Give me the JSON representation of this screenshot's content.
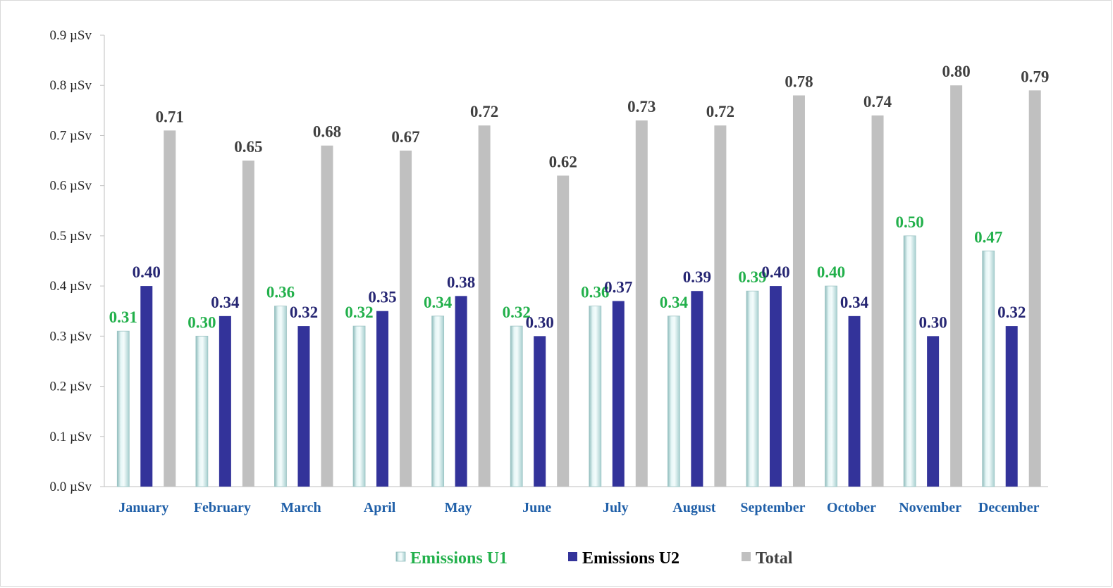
{
  "chart_data": {
    "type": "bar",
    "categories": [
      "January",
      "February",
      "March",
      "April",
      "May",
      "June",
      "July",
      "August",
      "September",
      "October",
      "November",
      "December"
    ],
    "series": [
      {
        "name": "Emissions U1",
        "values": [
          0.31,
          0.3,
          0.36,
          0.32,
          0.34,
          0.32,
          0.36,
          0.34,
          0.39,
          0.4,
          0.5,
          0.47
        ],
        "labels": [
          "0.31",
          "0.30",
          "0.36",
          "0.32",
          "0.34",
          "0.32",
          "0.36",
          "0.34",
          "0.39",
          "0.40",
          "0.50",
          "0.47"
        ],
        "color": "#c9e6e6",
        "label_color": "#22b04b"
      },
      {
        "name": "Emissions U2",
        "values": [
          0.4,
          0.34,
          0.32,
          0.35,
          0.38,
          0.3,
          0.37,
          0.39,
          0.4,
          0.34,
          0.3,
          0.32
        ],
        "labels": [
          "0.40",
          "0.34",
          "0.32",
          "0.35",
          "0.38",
          "0.30",
          "0.37",
          "0.39",
          "0.40",
          "0.34",
          "0.30",
          "0.32"
        ],
        "color": "#33339a",
        "label_color": "#262673"
      },
      {
        "name": "Total",
        "values": [
          0.71,
          0.65,
          0.68,
          0.67,
          0.72,
          0.62,
          0.73,
          0.72,
          0.78,
          0.74,
          0.8,
          0.79
        ],
        "labels": [
          "0.71",
          "0.65",
          "0.68",
          "0.67",
          "0.72",
          "0.62",
          "0.73",
          "0.72",
          "0.78",
          "0.74",
          "0.80",
          "0.79"
        ],
        "color": "#c0c0c0",
        "label_color": "#404040"
      }
    ],
    "ylim": [
      0,
      0.9
    ],
    "yticks": [
      "0.0 µSv",
      "0.1 µSv",
      "0.2 µSv",
      "0.3 µSv",
      "0.4 µSv",
      "0.5 µSv",
      "0.6 µSv",
      "0.7 µSv",
      "0.8 µSv",
      "0.9 µSv"
    ],
    "grid": false,
    "legend_position": "bottom-center",
    "legend_label_colors": [
      "#22b04b",
      "#000000",
      "#404040"
    ]
  }
}
